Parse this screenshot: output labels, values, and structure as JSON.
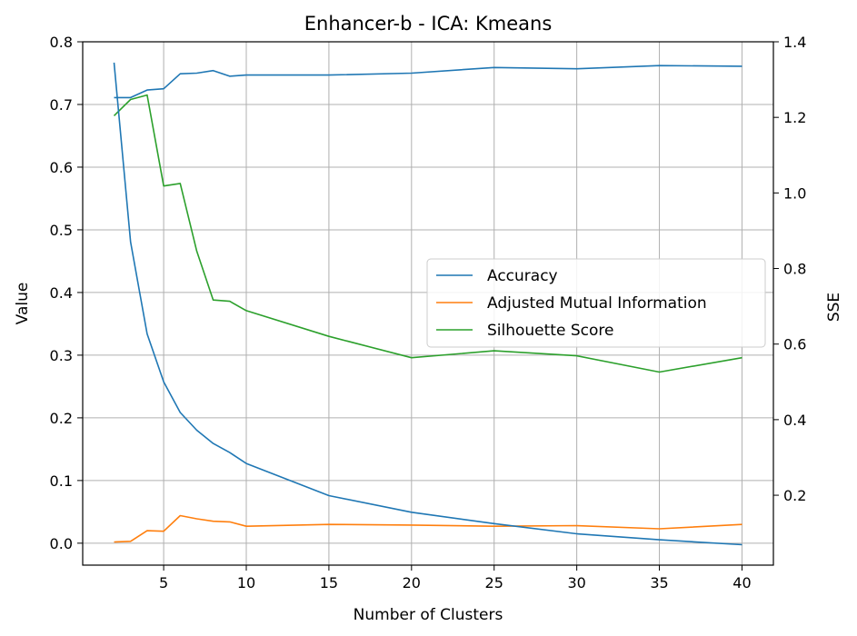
{
  "chart_data": {
    "type": "line",
    "title": "Enhancer-b - ICA: Kmeans",
    "xlabel": "Number of Clusters",
    "ylabel": "Value",
    "y2label": "SSE",
    "xlim": [
      0.1,
      41.9
    ],
    "ylim": [
      -0.035,
      0.8
    ],
    "y2lim": [
      0.015,
      1.4
    ],
    "xticks": [
      5,
      10,
      15,
      20,
      25,
      30,
      35,
      40
    ],
    "yticks": [
      0.0,
      0.1,
      0.2,
      0.3,
      0.4,
      0.5,
      0.6,
      0.7,
      0.8
    ],
    "y2ticks": [
      0.2,
      0.4,
      0.6,
      0.8,
      1.0,
      1.2,
      1.4
    ],
    "grid": true,
    "legend_position": "center-right",
    "series": [
      {
        "name": "Accuracy",
        "axis": "left",
        "color": "#1f77b4",
        "x": [
          2,
          3,
          4,
          5,
          6,
          7,
          8,
          9,
          10,
          15,
          20,
          25,
          30,
          35,
          40
        ],
        "values": [
          0.711,
          0.711,
          0.723,
          0.725,
          0.749,
          0.75,
          0.754,
          0.745,
          0.747,
          0.747,
          0.75,
          0.759,
          0.757,
          0.762,
          0.761
        ]
      },
      {
        "name": "Adjusted Mutual Information",
        "axis": "left",
        "color": "#ff7f0e",
        "x": [
          2,
          3,
          4,
          5,
          6,
          7,
          8,
          9,
          10,
          15,
          20,
          25,
          30,
          35,
          40
        ],
        "values": [
          0.002,
          0.003,
          0.02,
          0.019,
          0.044,
          0.039,
          0.035,
          0.034,
          0.027,
          0.03,
          0.029,
          0.027,
          0.028,
          0.023,
          0.03
        ]
      },
      {
        "name": "Silhouette Score",
        "axis": "left",
        "color": "#2ca02c",
        "x": [
          2,
          3,
          4,
          5,
          6,
          7,
          8,
          9,
          10,
          15,
          20,
          25,
          30,
          35,
          40
        ],
        "values": [
          0.682,
          0.708,
          0.715,
          0.57,
          0.574,
          0.466,
          0.388,
          0.386,
          0.371,
          0.33,
          0.296,
          0.307,
          0.299,
          0.273,
          0.296
        ]
      },
      {
        "axis": "right",
        "color": "#1f77b4",
        "x": [
          2,
          3,
          4,
          5,
          6,
          7,
          8,
          9,
          10,
          15,
          20,
          25,
          30,
          35,
          40
        ],
        "values": [
          1.345,
          0.87,
          0.627,
          0.5,
          0.419,
          0.372,
          0.337,
          0.313,
          0.284,
          0.199,
          0.155,
          0.125,
          0.098,
          0.082,
          0.069
        ]
      }
    ]
  }
}
